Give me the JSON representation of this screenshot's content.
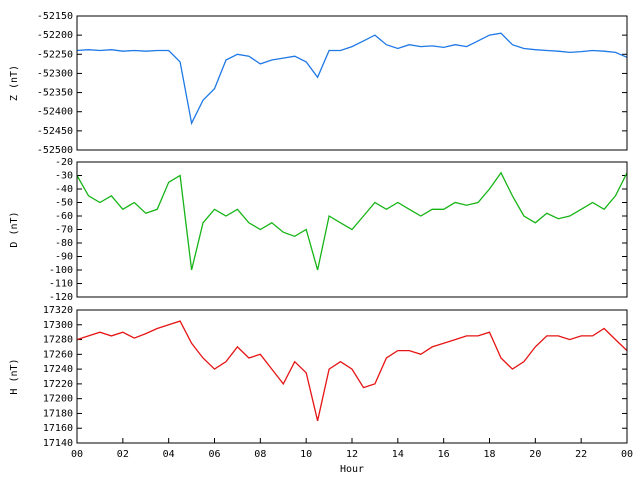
{
  "chart_data": [
    {
      "type": "line",
      "ylabel": "Z (nT)",
      "xlim": [
        0,
        24
      ],
      "ylim": [
        -52500,
        -52150
      ],
      "yticks": [
        -52500,
        -52450,
        -52400,
        -52350,
        -52300,
        -52250,
        -52200,
        -52150
      ],
      "x": [
        0,
        0.5,
        1,
        1.5,
        2,
        2.5,
        3,
        3.5,
        4,
        4.5,
        5,
        5.5,
        6,
        6.5,
        7,
        7.5,
        8,
        8.5,
        9,
        9.5,
        10,
        10.5,
        11,
        11.5,
        12,
        12.5,
        13,
        13.5,
        14,
        14.5,
        15,
        15.5,
        16,
        16.5,
        17,
        17.5,
        18,
        18.5,
        19,
        19.5,
        20,
        20.5,
        21,
        21.5,
        22,
        22.5,
        23,
        23.5,
        24
      ],
      "series": [
        {
          "color": "#1e78e6",
          "values": [
            -52240,
            -52238,
            -52240,
            -52238,
            -52242,
            -52240,
            -52242,
            -52240,
            -52240,
            -52270,
            -52430,
            -52370,
            -52340,
            -52265,
            -52250,
            -52255,
            -52275,
            -52265,
            -52260,
            -52255,
            -52270,
            -52310,
            -52240,
            -52240,
            -52230,
            -52215,
            -52200,
            -52225,
            -52235,
            -52225,
            -52230,
            -52228,
            -52232,
            -52225,
            -52230,
            -52215,
            -52200,
            -52195,
            -52225,
            -52235,
            -52238,
            -52240,
            -52242,
            -52245,
            -52243,
            -52240,
            -52242,
            -52245,
            -52258
          ]
        }
      ]
    },
    {
      "type": "line",
      "ylabel": "D (nT)",
      "xlim": [
        0,
        24
      ],
      "ylim": [
        -120,
        -20
      ],
      "yticks": [
        -120,
        -110,
        -100,
        -90,
        -80,
        -70,
        -60,
        -50,
        -40,
        -30,
        -20
      ],
      "x": [
        0,
        0.5,
        1,
        1.5,
        2,
        2.5,
        3,
        3.5,
        4,
        4.5,
        5,
        5.5,
        6,
        6.5,
        7,
        7.5,
        8,
        8.5,
        9,
        9.5,
        10,
        10.5,
        11,
        11.5,
        12,
        12.5,
        13,
        13.5,
        14,
        14.5,
        15,
        15.5,
        16,
        16.5,
        17,
        17.5,
        18,
        18.5,
        19,
        19.5,
        20,
        20.5,
        21,
        21.5,
        22,
        22.5,
        23,
        23.5,
        24
      ],
      "series": [
        {
          "color": "#16b416",
          "values": [
            -30,
            -45,
            -50,
            -45,
            -55,
            -50,
            -58,
            -55,
            -35,
            -30,
            -100,
            -65,
            -55,
            -60,
            -55,
            -65,
            -70,
            -65,
            -72,
            -75,
            -70,
            -100,
            -60,
            -65,
            -70,
            -60,
            -50,
            -55,
            -50,
            -55,
            -60,
            -55,
            -55,
            -50,
            -52,
            -50,
            -40,
            -28,
            -45,
            -60,
            -65,
            -58,
            -62,
            -60,
            -55,
            -50,
            -55,
            -45,
            -28
          ]
        }
      ]
    },
    {
      "type": "line",
      "ylabel": "H (nT)",
      "xlabel": "Hour",
      "xlim": [
        0,
        24
      ],
      "xticks": [
        {
          "value": 0,
          "label": "00"
        },
        {
          "value": 2,
          "label": "02"
        },
        {
          "value": 4,
          "label": "04"
        },
        {
          "value": 6,
          "label": "06"
        },
        {
          "value": 8,
          "label": "08"
        },
        10,
        12,
        14,
        16,
        18,
        20,
        22,
        {
          "value": 24,
          "label": "00"
        }
      ],
      "ylim": [
        17140,
        17320
      ],
      "yticks": [
        17140,
        17160,
        17180,
        17200,
        17220,
        17240,
        17260,
        17280,
        17300,
        17320
      ],
      "x": [
        0,
        0.5,
        1,
        1.5,
        2,
        2.5,
        3,
        3.5,
        4,
        4.5,
        5,
        5.5,
        6,
        6.5,
        7,
        7.5,
        8,
        8.5,
        9,
        9.5,
        10,
        10.5,
        11,
        11.5,
        12,
        12.5,
        13,
        13.5,
        14,
        14.5,
        15,
        15.5,
        16,
        16.5,
        17,
        17.5,
        18,
        18.5,
        19,
        19.5,
        20,
        20.5,
        21,
        21.5,
        22,
        22.5,
        23,
        23.5,
        24
      ],
      "series": [
        {
          "color": "#e61414",
          "values": [
            17280,
            17285,
            17290,
            17285,
            17290,
            17282,
            17288,
            17295,
            17300,
            17305,
            17275,
            17255,
            17240,
            17250,
            17270,
            17255,
            17260,
            17240,
            17220,
            17250,
            17235,
            17170,
            17240,
            17250,
            17240,
            17215,
            17220,
            17255,
            17265,
            17265,
            17260,
            17270,
            17275,
            17280,
            17285,
            17285,
            17290,
            17255,
            17240,
            17250,
            17270,
            17285,
            17285,
            17280,
            17285,
            17285,
            17295,
            17280,
            17265
          ]
        }
      ]
    }
  ]
}
